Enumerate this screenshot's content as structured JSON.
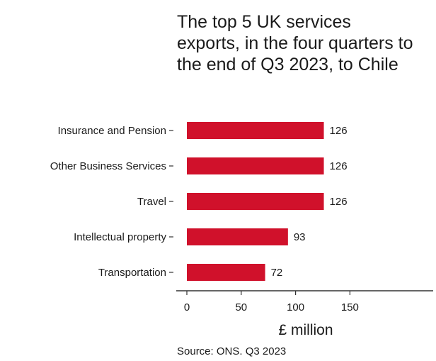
{
  "chart_data": {
    "type": "bar",
    "orientation": "horizontal",
    "title": "The top 5 UK services exports, in the four quarters to the end of Q3 2023, to Chile",
    "categories": [
      "Insurance and Pension",
      "Other Business Services",
      "Travel",
      "Intellectual property",
      "Transportation"
    ],
    "values": [
      126,
      126,
      126,
      93,
      72
    ],
    "data_labels": [
      "126",
      "126",
      "126",
      "93",
      "72"
    ],
    "xlabel": "£ million",
    "ylabel": "",
    "xlim": [
      0,
      170
    ],
    "x_ticks": [
      0,
      50,
      100,
      150
    ],
    "x_tick_labels": [
      "0",
      "50",
      "100",
      "150"
    ],
    "bar_color": "#d0112b",
    "grid": false,
    "legend": "none",
    "source": "Source: ONS. Q3 2023"
  }
}
